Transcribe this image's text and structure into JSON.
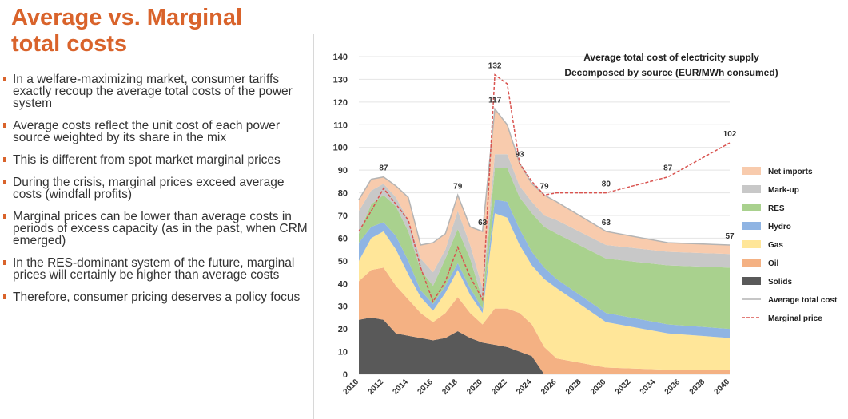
{
  "slide": {
    "title_line1": "Average vs. Marginal",
    "title_line2": "total costs",
    "bullets": [
      "In a welfare-maximizing market, consumer tariffs exactly recoup the average total costs of the power system",
      "Average costs reflect the unit cost of each power source weighted by its share in the mix",
      "This is different from spot market marginal prices",
      "During the crisis, marginal prices exceed average costs (windfall profits)",
      "Marginal prices can be lower than average costs in periods of excess capacity (as in the past, when CRM emerged)",
      "In the RES-dominant system of the future, marginal prices will certainly be higher than average costs",
      "Therefore, consumer pricing deserves a policy focus"
    ],
    "accent_color": "#d9632b"
  },
  "chart_data": {
    "type": "area",
    "title": "Average total cost of electricity supply",
    "subtitle": "Decomposed by source (EUR/MWh consumed)",
    "ylim": [
      0,
      140
    ],
    "yticks": [
      0,
      10,
      20,
      30,
      40,
      50,
      60,
      70,
      80,
      90,
      100,
      110,
      120,
      130,
      140
    ],
    "xlim": [
      2010,
      2040
    ],
    "xticks": [
      2010,
      2012,
      2014,
      2016,
      2018,
      2020,
      2022,
      2024,
      2026,
      2028,
      2030,
      2032,
      2034,
      2036,
      2038,
      2040
    ],
    "grid": true,
    "legend_position": "right",
    "x": [
      2010,
      2011,
      2012,
      2013,
      2014,
      2015,
      2016,
      2017,
      2018,
      2019,
      2020,
      2021,
      2022,
      2023,
      2024,
      2025,
      2026,
      2030,
      2035,
      2040
    ],
    "stacked_series": [
      {
        "name": "Solids",
        "color": "#595959",
        "values": [
          24,
          25,
          24,
          18,
          17,
          16,
          15,
          16,
          19,
          16,
          14,
          13,
          12,
          10,
          8,
          0,
          0,
          0,
          0,
          0
        ]
      },
      {
        "name": "Oil",
        "color": "#f4b183",
        "values": [
          17,
          21,
          23,
          21,
          16,
          11,
          8,
          11,
          15,
          11,
          8,
          16,
          17,
          17,
          14,
          12,
          7,
          3,
          2,
          2
        ]
      },
      {
        "name": "Gas",
        "color": "#ffe699",
        "values": [
          9,
          14,
          16,
          16,
          11,
          7,
          5,
          9,
          12,
          8,
          5,
          42,
          40,
          30,
          26,
          30,
          31,
          20,
          16,
          14
        ]
      },
      {
        "name": "Hydro",
        "color": "#8fb4e3",
        "values": [
          8,
          5,
          4,
          6,
          6,
          3,
          3,
          3,
          3,
          3,
          2,
          6,
          7,
          7,
          6,
          5,
          4,
          4,
          4,
          4
        ]
      },
      {
        "name": "RES",
        "color": "#a9d18e",
        "values": [
          4,
          10,
          12,
          13,
          13,
          9,
          8,
          12,
          15,
          13,
          4,
          14,
          15,
          14,
          17,
          18,
          20,
          24,
          26,
          27
        ]
      },
      {
        "name": "Mark-up",
        "color": "#c8c8c8",
        "values": [
          10,
          6,
          5,
          4,
          5,
          5,
          6,
          4,
          8,
          6,
          5,
          6,
          6,
          5,
          5,
          5,
          6,
          6,
          6,
          6
        ]
      },
      {
        "name": "Net imports",
        "color": "#f8cbad",
        "values": [
          5,
          5,
          3,
          5,
          10,
          6,
          13,
          7,
          7,
          8,
          25,
          20,
          13,
          10,
          8,
          9,
          8,
          6,
          4,
          4
        ]
      }
    ],
    "lines": [
      {
        "name": "Average total cost",
        "color": "#b4b4b4",
        "style": "solid",
        "values": [
          77,
          86,
          87,
          83,
          78,
          57,
          58,
          62,
          79,
          65,
          63,
          117,
          110,
          93,
          84,
          79,
          76,
          63,
          58,
          57
        ]
      },
      {
        "name": "Marginal price",
        "color": "#d9534f",
        "style": "dashed",
        "values": [
          63,
          72,
          82,
          75,
          68,
          47,
          32,
          41,
          56,
          43,
          33,
          132,
          128,
          93,
          85,
          79,
          80,
          80,
          87,
          102
        ]
      }
    ],
    "annotations": [
      {
        "x": 2012,
        "y": 87,
        "label": "87"
      },
      {
        "x": 2018,
        "y": 79,
        "label": "79"
      },
      {
        "x": 2020,
        "y": 63,
        "label": "63"
      },
      {
        "x": 2021,
        "y": 117,
        "label": "117"
      },
      {
        "x": 2021,
        "y": 132,
        "label": "132"
      },
      {
        "x": 2023,
        "y": 93,
        "label": "93"
      },
      {
        "x": 2025,
        "y": 79,
        "label": "79"
      },
      {
        "x": 2030,
        "y": 80,
        "label": "80"
      },
      {
        "x": 2030,
        "y": 63,
        "label": "63"
      },
      {
        "x": 2035,
        "y": 87,
        "label": "87"
      },
      {
        "x": 2040,
        "y": 102,
        "label": "102"
      },
      {
        "x": 2040,
        "y": 57,
        "label": "57"
      }
    ]
  }
}
